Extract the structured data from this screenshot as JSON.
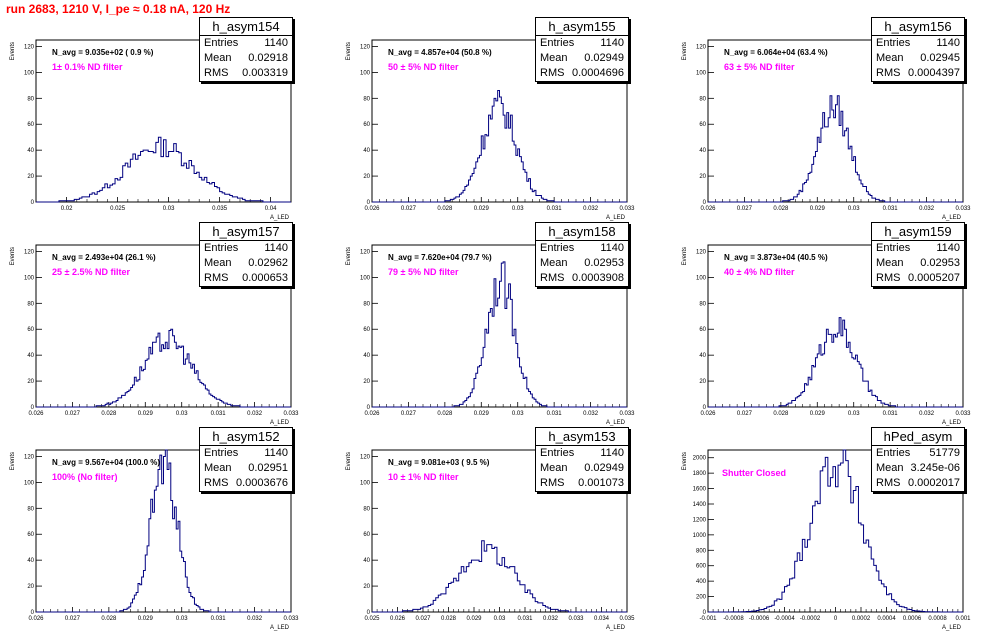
{
  "header": {
    "title": "run 2683,  1210 V, I_pe ≈ 0.18 nA, 120 Hz"
  },
  "colors": {
    "title": "#ff0000",
    "filter_label": "#ff00ff",
    "histogram": "#000080"
  },
  "chart_data": [
    {
      "type": "histogram",
      "name": "h_asym154",
      "n_avg": "N_avg = 9.035e+02 ( 0.9 %)",
      "filter": "1± 0.1% ND filter",
      "stats": {
        "entries": "1140",
        "mean": "0.02918",
        "rms": "0.003319"
      },
      "xlabel": "A_LED",
      "ylabel": "Events",
      "xlim": [
        0.017,
        0.042
      ],
      "ylim": [
        0,
        125
      ],
      "xticks": [
        "0.02",
        "0.025",
        "0.03",
        "0.035",
        "0.04"
      ],
      "yticks": [
        "0",
        "20",
        "40",
        "60",
        "80",
        "100",
        "120"
      ],
      "mean": 0.02918,
      "rms": 0.003319,
      "entries": 1140,
      "peak": 43,
      "bin_width": 0.00025
    },
    {
      "type": "histogram",
      "name": "h_asym155",
      "n_avg": "N_avg = 4.857e+04 (50.8 %)",
      "filter": "50 ± 5% ND filter",
      "stats": {
        "entries": "1140",
        "mean": "0.02949",
        "rms": "0.0004696"
      },
      "xlabel": "A_LED",
      "ylabel": "Events",
      "xlim": [
        0.026,
        0.033
      ],
      "ylim": [
        0,
        125
      ],
      "xticks": [
        "0.026",
        "0.027",
        "0.028",
        "0.029",
        "0.03",
        "0.031",
        "0.032",
        "0.033"
      ],
      "yticks": [
        "0",
        "20",
        "40",
        "60",
        "80",
        "100",
        "120"
      ],
      "mean": 0.02949,
      "rms": 0.0004696,
      "entries": 1140,
      "peak": 74,
      "bin_width": 5e-05
    },
    {
      "type": "histogram",
      "name": "h_asym156",
      "n_avg": "N_avg = 6.064e+04 (63.4 %)",
      "filter": "63 ± 5% ND filter",
      "stats": {
        "entries": "1140",
        "mean": "0.02945",
        "rms": "0.0004397"
      },
      "xlabel": "A_LED",
      "ylabel": "Events",
      "xlim": [
        0.026,
        0.033
      ],
      "ylim": [
        0,
        125
      ],
      "xticks": [
        "0.026",
        "0.027",
        "0.028",
        "0.029",
        "0.03",
        "0.031",
        "0.032",
        "0.033"
      ],
      "yticks": [
        "0",
        "20",
        "40",
        "60",
        "80",
        "100",
        "120"
      ],
      "mean": 0.02945,
      "rms": 0.0004397,
      "entries": 1140,
      "peak": 73,
      "bin_width": 5e-05
    },
    {
      "type": "histogram",
      "name": "h_asym157",
      "n_avg": "N_avg = 2.493e+04 (26.1 %)",
      "filter": "25 ± 2.5% ND filter",
      "stats": {
        "entries": "1140",
        "mean": "0.02962",
        "rms": "0.000653"
      },
      "xlabel": "A_LED",
      "ylabel": "Events",
      "xlim": [
        0.026,
        0.033
      ],
      "ylim": [
        0,
        125
      ],
      "xticks": [
        "0.026",
        "0.027",
        "0.028",
        "0.029",
        "0.03",
        "0.031",
        "0.032",
        "0.033"
      ],
      "yticks": [
        "0",
        "20",
        "40",
        "60",
        "80",
        "100",
        "120"
      ],
      "mean": 0.02962,
      "rms": 0.000653,
      "entries": 1140,
      "peak": 52,
      "bin_width": 5e-05
    },
    {
      "type": "histogram",
      "name": "h_asym158",
      "n_avg": "N_avg = 7.620e+04 (79.7 %)",
      "filter": "79 ± 5% ND filter",
      "stats": {
        "entries": "1140",
        "mean": "0.02953",
        "rms": "0.0003908"
      },
      "xlabel": "A_LED",
      "ylabel": "Events",
      "xlim": [
        0.026,
        0.033
      ],
      "ylim": [
        0,
        125
      ],
      "xticks": [
        "0.026",
        "0.027",
        "0.028",
        "0.029",
        "0.03",
        "0.031",
        "0.032",
        "0.033"
      ],
      "yticks": [
        "0",
        "20",
        "40",
        "60",
        "80",
        "100",
        "120"
      ],
      "mean": 0.02953,
      "rms": 0.0003908,
      "entries": 1140,
      "peak": 98,
      "bin_width": 5e-05
    },
    {
      "type": "histogram",
      "name": "h_asym159",
      "n_avg": "N_avg = 3.873e+04 (40.5 %)",
      "filter": "40 ± 4% ND filter",
      "stats": {
        "entries": "1140",
        "mean": "0.02953",
        "rms": "0.0005207"
      },
      "xlabel": "A_LED",
      "ylabel": "Events",
      "xlim": [
        0.026,
        0.033
      ],
      "ylim": [
        0,
        125
      ],
      "xticks": [
        "0.026",
        "0.027",
        "0.028",
        "0.029",
        "0.03",
        "0.031",
        "0.032",
        "0.033"
      ],
      "yticks": [
        "0",
        "20",
        "40",
        "60",
        "80",
        "100",
        "120"
      ],
      "mean": 0.02953,
      "rms": 0.0005207,
      "entries": 1140,
      "peak": 62,
      "bin_width": 5e-05
    },
    {
      "type": "histogram",
      "name": "h_asym152",
      "n_avg": "N_avg = 9.567e+04 (100.0 %)",
      "filter": "100% (No filter)",
      "stats": {
        "entries": "1140",
        "mean": "0.02951",
        "rms": "0.0003676"
      },
      "xlabel": "A_LED",
      "ylabel": "Events",
      "xlim": [
        0.026,
        0.033
      ],
      "ylim": [
        0,
        125
      ],
      "xticks": [
        "0.026",
        "0.027",
        "0.028",
        "0.029",
        "0.03",
        "0.031",
        "0.032",
        "0.033"
      ],
      "yticks": [
        "0",
        "20",
        "40",
        "60",
        "80",
        "100",
        "120"
      ],
      "mean": 0.02951,
      "rms": 0.0003676,
      "entries": 1140,
      "peak": 113,
      "bin_width": 5e-05
    },
    {
      "type": "histogram",
      "name": "h_asym153",
      "n_avg": "N_avg = 9.081e+03 ( 9.5 %)",
      "filter": "10 ± 1% ND filter",
      "stats": {
        "entries": "1140",
        "mean": "0.02949",
        "rms": "0.001073"
      },
      "xlabel": "A_LED",
      "ylabel": "Events",
      "xlim": [
        0.025,
        0.035
      ],
      "ylim": [
        0,
        125
      ],
      "xticks": [
        "0.025",
        "0.026",
        "0.027",
        "0.028",
        "0.029",
        "0.03",
        "0.031",
        "0.032",
        "0.033",
        "0.034",
        "0.035"
      ],
      "yticks": [
        "0",
        "20",
        "40",
        "60",
        "80",
        "100",
        "120"
      ],
      "mean": 0.02949,
      "rms": 0.001073,
      "entries": 1140,
      "peak": 48,
      "bin_width": 0.0001
    },
    {
      "type": "histogram",
      "name": "hPed_asym",
      "n_avg": "",
      "filter": "Shutter Closed",
      "stats": {
        "entries": "51779",
        "mean": "3.245e-06",
        "rms": "0.0002017"
      },
      "xlabel": "A_LED",
      "ylabel": "Events",
      "xlim": [
        -0.001,
        0.001
      ],
      "ylim": [
        0,
        2100
      ],
      "xticks": [
        "-0.001",
        "-0.0008",
        "-0.0006",
        "-0.0004",
        "-0.0002",
        "0",
        "0.0002",
        "0.0004",
        "0.0006",
        "0.0008",
        "0.001"
      ],
      "yticks": [
        "0",
        "200",
        "400",
        "600",
        "800",
        "1000",
        "1200",
        "1400",
        "1600",
        "1800",
        "2000"
      ],
      "mean": 3.245e-06,
      "rms": 0.0002017,
      "entries": 51779,
      "peak": 1950,
      "bin_width": 2e-05
    }
  ],
  "labels": {
    "stat_entries": "Entries",
    "stat_mean": "Mean",
    "stat_rms": "RMS"
  }
}
